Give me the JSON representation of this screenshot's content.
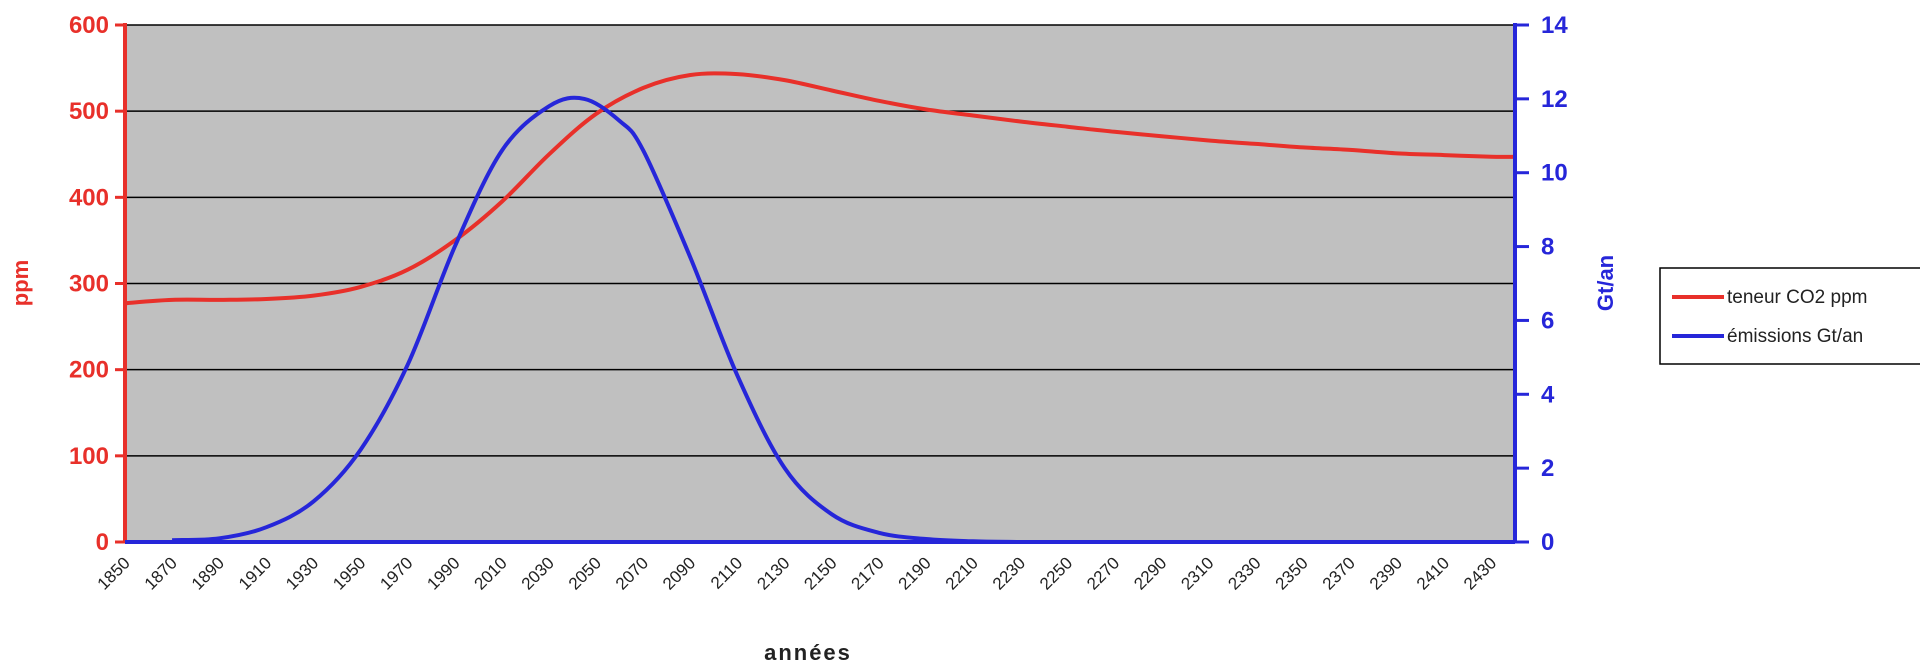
{
  "chart_data": {
    "type": "line",
    "xlabel": "années",
    "ylabel_left": "ppm",
    "ylabel_right": "Gt/an",
    "x_ticks": [
      "1850",
      "1870",
      "1890",
      "1910",
      "1930",
      "1950",
      "1970",
      "1990",
      "2010",
      "2030",
      "2050",
      "2070",
      "2090",
      "2110",
      "2130",
      "2150",
      "2170",
      "2190",
      "2210",
      "2230",
      "2250",
      "2270",
      "2290",
      "2310",
      "2330",
      "2350",
      "2370",
      "2390",
      "2410",
      "2430"
    ],
    "xlim": [
      1850,
      2440
    ],
    "ylim_left": [
      0,
      600
    ],
    "ylim_right": [
      0,
      14
    ],
    "yticks_left": [
      0,
      100,
      200,
      300,
      400,
      500,
      600
    ],
    "yticks_right": [
      0,
      2,
      4,
      6,
      8,
      10,
      12,
      14
    ],
    "grid": true,
    "legend_position": "right",
    "colors": {
      "co2": "#e8302a",
      "emissions": "#2626d9",
      "plot_bg": "#c0c0c0",
      "grid": "#000000"
    },
    "series": [
      {
        "name": "teneur CO2 ppm",
        "axis": "left",
        "x": [
          1850,
          1870,
          1890,
          1910,
          1930,
          1950,
          1970,
          1990,
          2010,
          2030,
          2050,
          2070,
          2090,
          2110,
          2130,
          2150,
          2170,
          2190,
          2210,
          2230,
          2250,
          2270,
          2290,
          2310,
          2330,
          2350,
          2370,
          2390,
          2410,
          2430,
          2440
        ],
        "values": [
          277,
          281,
          281,
          282,
          286,
          296,
          316,
          350,
          395,
          450,
          497,
          527,
          542,
          543,
          536,
          524,
          512,
          502,
          495,
          488,
          482,
          476,
          471,
          466,
          462,
          458,
          455,
          451,
          449,
          447,
          447
        ]
      },
      {
        "name": "émissions Gt/an",
        "axis": "right",
        "x": [
          1870,
          1890,
          1910,
          1930,
          1950,
          1970,
          1990,
          2010,
          2030,
          2045,
          2060,
          2070,
          2090,
          2110,
          2130,
          2150,
          2170,
          2190,
          2210,
          2230,
          2250,
          2270,
          2290,
          2310,
          2330,
          2350,
          2370,
          2390,
          2410,
          2440
        ],
        "values": [
          0.05,
          0.1,
          0.4,
          1.1,
          2.5,
          4.8,
          8.0,
          10.6,
          11.8,
          12.0,
          11.4,
          10.6,
          7.7,
          4.5,
          2.0,
          0.75,
          0.25,
          0.08,
          0.02,
          0,
          0,
          0,
          0,
          0,
          0,
          0,
          0,
          0,
          0,
          0
        ]
      }
    ]
  }
}
